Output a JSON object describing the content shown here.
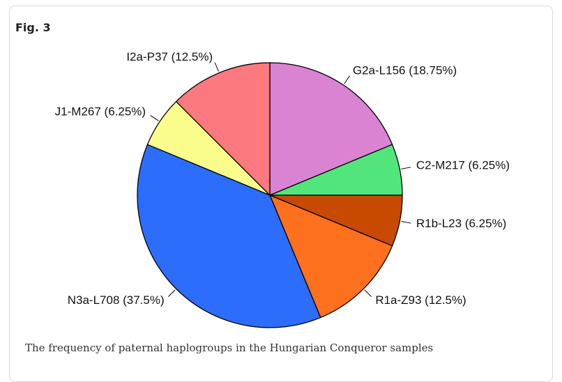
{
  "figure": {
    "label": "Fig. 3",
    "caption": "The frequency of paternal haplogroups in the Hungarian Conqueror samples"
  },
  "chart_data": {
    "type": "pie",
    "title": "",
    "slices": [
      {
        "label": "G2a-L156 (18.75%)",
        "value": 18.75,
        "color": "#DA83D3"
      },
      {
        "label": "C2-M217 (6.25%)",
        "value": 6.25,
        "color": "#52E57B"
      },
      {
        "label": "R1b-L23 (6.25%)",
        "value": 6.25,
        "color": "#C74A00"
      },
      {
        "label": "R1a-Z93 (12.5%)",
        "value": 12.5,
        "color": "#FC701E"
      },
      {
        "label": "N3a-L708 (37.5%)",
        "value": 37.5,
        "color": "#2D6DFB"
      },
      {
        "label": "J1-M267 (6.25%)",
        "value": 6.25,
        "color": "#FAFC8C"
      },
      {
        "label": "I2a-P37 (12.5%)",
        "value": 12.5,
        "color": "#FC7A7F"
      }
    ],
    "direction": "clockwise",
    "start": "top"
  }
}
